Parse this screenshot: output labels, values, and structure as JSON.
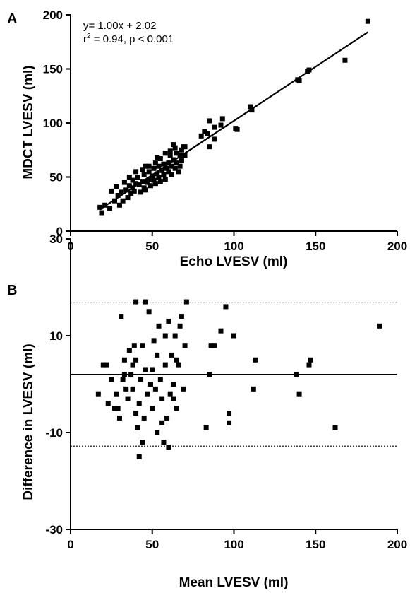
{
  "chart_data": [
    {
      "panel_label": "A",
      "type": "scatter",
      "xlabel": "Echo LVESV (ml)",
      "ylabel": "MDCT LVESV (ml)",
      "xlim": [
        0,
        200
      ],
      "ylim": [
        0,
        200
      ],
      "xticks": [
        "0",
        "50",
        "100",
        "150",
        "200"
      ],
      "yticks": [
        "0",
        "50",
        "100",
        "150",
        "200"
      ],
      "annotation_line1": "y= 1.00x + 2.02",
      "annotation_r": "r",
      "annotation_sup": "2",
      "annotation_rest": " = 0.94, p < 0.001",
      "regression": {
        "slope": 1.0,
        "intercept": 2.02,
        "x_range": [
          18,
          182
        ]
      },
      "marker_color": "#000000",
      "points": [
        [
          18,
          22
        ],
        [
          19,
          17
        ],
        [
          21,
          24
        ],
        [
          24,
          21
        ],
        [
          25,
          37
        ],
        [
          27,
          28
        ],
        [
          28,
          41
        ],
        [
          29,
          33
        ],
        [
          30,
          24
        ],
        [
          31,
          36
        ],
        [
          32,
          28
        ],
        [
          33,
          45
        ],
        [
          34,
          38
        ],
        [
          35,
          31
        ],
        [
          36,
          42
        ],
        [
          37,
          35
        ],
        [
          38,
          47
        ],
        [
          38,
          40
        ],
        [
          39,
          37
        ],
        [
          40,
          44
        ],
        [
          41,
          50
        ],
        [
          42,
          43
        ],
        [
          43,
          36
        ],
        [
          44,
          46
        ],
        [
          45,
          52
        ],
        [
          45,
          40
        ],
        [
          46,
          38
        ],
        [
          47,
          45
        ],
        [
          48,
          55
        ],
        [
          48,
          48
        ],
        [
          49,
          42
        ],
        [
          50,
          51
        ],
        [
          51,
          58
        ],
        [
          51,
          47
        ],
        [
          52,
          44
        ],
        [
          53,
          53
        ],
        [
          54,
          60
        ],
        [
          54,
          50
        ],
        [
          55,
          46
        ],
        [
          55,
          67
        ],
        [
          56,
          56
        ],
        [
          57,
          62
        ],
        [
          57,
          52
        ],
        [
          58,
          48
        ],
        [
          59,
          58
        ],
        [
          60,
          63
        ],
        [
          60,
          55
        ],
        [
          61,
          70
        ],
        [
          62,
          60
        ],
        [
          62,
          52
        ],
        [
          63,
          66
        ],
        [
          64,
          58
        ],
        [
          64,
          77
        ],
        [
          65,
          72
        ],
        [
          65,
          63
        ],
        [
          66,
          55
        ],
        [
          67,
          70
        ],
        [
          67,
          60
        ],
        [
          68,
          75
        ],
        [
          68,
          65
        ],
        [
          69,
          78
        ],
        [
          70,
          70
        ],
        [
          70,
          78
        ],
        [
          46,
          60
        ],
        [
          48,
          60
        ],
        [
          44,
          57
        ],
        [
          52,
          63
        ],
        [
          40,
          55
        ],
        [
          36,
          50
        ],
        [
          53,
          68
        ],
        [
          58,
          72
        ],
        [
          61,
          74
        ],
        [
          63,
          80
        ],
        [
          80,
          88
        ],
        [
          82,
          92
        ],
        [
          84,
          90
        ],
        [
          85,
          78
        ],
        [
          85,
          102
        ],
        [
          88,
          96
        ],
        [
          88,
          85
        ],
        [
          92,
          98
        ],
        [
          93,
          104
        ],
        [
          101,
          95
        ],
        [
          102,
          94
        ],
        [
          110,
          115
        ],
        [
          111,
          112
        ],
        [
          139,
          140
        ],
        [
          140,
          139
        ],
        [
          145,
          148
        ],
        [
          146,
          149
        ],
        [
          168,
          158
        ],
        [
          182,
          194
        ]
      ]
    },
    {
      "panel_label": "B",
      "type": "scatter",
      "xlabel": "Mean LVESV (ml)",
      "ylabel": "Difference in LVESV (ml)",
      "xlim": [
        0,
        200
      ],
      "ylim": [
        -30,
        30
      ],
      "xticks": [
        "0",
        "50",
        "100",
        "150",
        "200"
      ],
      "yticks": [
        "-30",
        "-10",
        "10",
        "30"
      ],
      "mean_line": 2,
      "limits_of_agreement": [
        -12.8,
        16.8
      ],
      "marker_color": "#000000",
      "points": [
        [
          17,
          -2
        ],
        [
          20,
          4
        ],
        [
          22,
          4
        ],
        [
          23,
          -4
        ],
        [
          25,
          1
        ],
        [
          27,
          -5
        ],
        [
          28,
          -2
        ],
        [
          29,
          -5
        ],
        [
          30,
          -7
        ],
        [
          31,
          14
        ],
        [
          32,
          1
        ],
        [
          33,
          5
        ],
        [
          34,
          -1
        ],
        [
          35,
          -3
        ],
        [
          36,
          7
        ],
        [
          37,
          2
        ],
        [
          38,
          4
        ],
        [
          38,
          -1
        ],
        [
          39,
          8
        ],
        [
          40,
          5
        ],
        [
          40,
          -6
        ],
        [
          41,
          -9
        ],
        [
          42,
          -4
        ],
        [
          43,
          1
        ],
        [
          44,
          8
        ],
        [
          45,
          -7
        ],
        [
          46,
          3
        ],
        [
          47,
          -2
        ],
        [
          48,
          15
        ],
        [
          49,
          0
        ],
        [
          50,
          -5
        ],
        [
          51,
          9
        ],
        [
          52,
          -1
        ],
        [
          53,
          6
        ],
        [
          53,
          -10
        ],
        [
          54,
          12
        ],
        [
          55,
          1
        ],
        [
          56,
          -3
        ],
        [
          57,
          -12
        ],
        [
          58,
          10
        ],
        [
          58,
          4
        ],
        [
          59,
          -7
        ],
        [
          60,
          13
        ],
        [
          61,
          -2
        ],
        [
          62,
          6
        ],
        [
          63,
          0
        ],
        [
          64,
          10
        ],
        [
          65,
          -5
        ],
        [
          66,
          4
        ],
        [
          67,
          12
        ],
        [
          68,
          14
        ],
        [
          69,
          -1
        ],
        [
          70,
          8
        ],
        [
          71,
          17
        ],
        [
          40,
          17
        ],
        [
          44,
          -12
        ],
        [
          46,
          17
        ],
        [
          33,
          2
        ],
        [
          50,
          3
        ],
        [
          56,
          -8
        ],
        [
          60,
          -13
        ],
        [
          63,
          -3
        ],
        [
          42,
          -15
        ],
        [
          65,
          5
        ],
        [
          83,
          -9
        ],
        [
          85,
          2
        ],
        [
          86,
          8
        ],
        [
          88,
          8
        ],
        [
          92,
          11
        ],
        [
          95,
          16
        ],
        [
          97,
          -8
        ],
        [
          97,
          -6
        ],
        [
          100,
          10
        ],
        [
          112,
          -1
        ],
        [
          113,
          5
        ],
        [
          138,
          2
        ],
        [
          140,
          -2
        ],
        [
          146,
          4
        ],
        [
          147,
          5
        ],
        [
          162,
          -9
        ],
        [
          189,
          12
        ]
      ]
    }
  ]
}
